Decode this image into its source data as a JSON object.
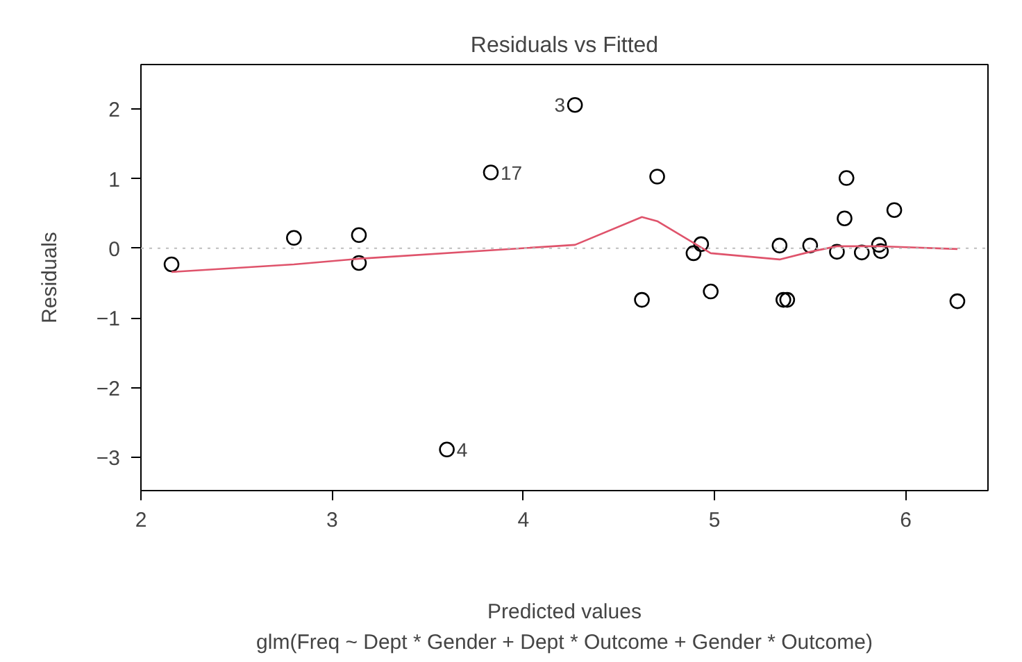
{
  "chart_data": {
    "type": "scatter",
    "title": "Residuals vs Fitted",
    "subtitle": "glm(Freq ~ Dept * Gender + Dept * Outcome + Gender * Outcome)",
    "xlabel": "Predicted values",
    "ylabel": "Residuals",
    "grid": false,
    "xlim": [
      2.0,
      6.43
    ],
    "ylim": [
      -3.48,
      2.64
    ],
    "xticks": [
      2,
      3,
      4,
      5,
      6
    ],
    "yticks": [
      -3,
      -2,
      -1,
      0,
      1,
      2
    ],
    "series": [
      {
        "color": "#000000",
        "marker": "circle",
        "x": [
          2.16,
          2.8,
          3.14,
          3.14,
          3.83,
          3.6,
          4.27,
          4.7,
          4.62,
          4.93,
          4.89,
          4.98,
          5.34,
          5.36,
          5.38,
          5.5,
          5.64,
          5.68,
          5.69,
          5.77,
          5.86,
          5.87,
          5.94,
          6.27
        ],
        "values": [
          -0.23,
          0.15,
          0.19,
          -0.21,
          1.09,
          -2.89,
          2.06,
          1.03,
          -0.74,
          0.06,
          -0.07,
          -0.62,
          0.04,
          -0.74,
          -0.74,
          0.04,
          -0.05,
          0.43,
          1.01,
          -0.06,
          0.05,
          -0.04,
          0.55,
          -0.76
        ]
      },
      {
        "type": "line",
        "color": "#df536b",
        "line_style": "solid",
        "x": [
          2.16,
          2.8,
          3.14,
          4.27,
          4.62,
          4.7,
          4.98,
          5.34,
          5.5,
          5.64,
          5.86,
          6.27
        ],
        "values": [
          -0.34,
          -0.23,
          -0.15,
          0.05,
          0.45,
          0.39,
          -0.07,
          -0.16,
          -0.05,
          0.03,
          0.03,
          -0.01
        ]
      }
    ],
    "ref_lines": [
      {
        "axis": "y",
        "value": 0,
        "color": "#bebebe",
        "line_style": "dotted"
      }
    ],
    "annotations": [
      {
        "text": "3",
        "x": 4.27,
        "y": 2.06
      },
      {
        "text": "17",
        "x": 3.83,
        "y": 1.09
      },
      {
        "text": "4",
        "x": 3.6,
        "y": -2.89
      }
    ]
  }
}
